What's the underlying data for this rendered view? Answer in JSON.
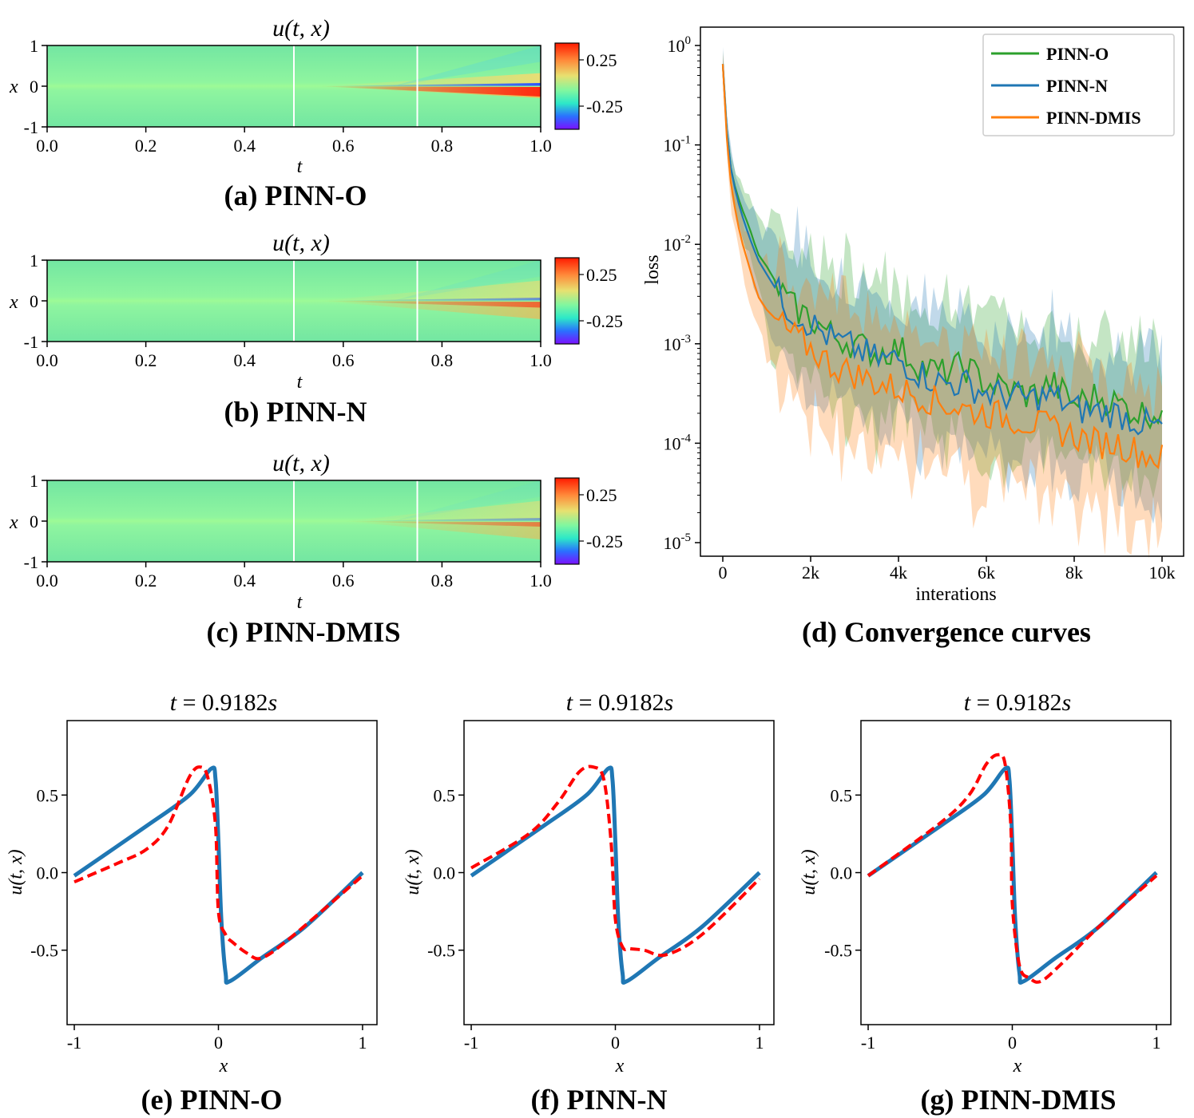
{
  "heatmap_title": "u(t, x)",
  "heatmap_xlabel": "t",
  "heatmap_ylabel": "x",
  "heatmap_xticks": [
    "0.0",
    "0.2",
    "0.4",
    "0.6",
    "0.8",
    "1.0"
  ],
  "heatmap_yticks": [
    "1",
    "0",
    "-1"
  ],
  "colorbar_ticks": [
    "0.25",
    "-0.25"
  ],
  "captions": {
    "a": "(a) PINN-O",
    "b": "(b) PINN-N",
    "c": "(c) PINN-DMIS",
    "d": "(d) Convergence curves",
    "e": "(e) PINN-O",
    "f": "(f) PINN-N",
    "g": "(g) PINN-DMIS"
  },
  "slice_title": {
    "prefix": "t",
    "equals": " = 0.9182",
    "unit": "s"
  },
  "slice_xlabel": "x",
  "slice_ylabel": "u(t, x)",
  "slice_xticks": [
    "-1",
    "0",
    "1"
  ],
  "slice_yticks": [
    "0.5",
    "0.0",
    "-0.5"
  ],
  "convergence_xlabel": "interations",
  "convergence_ylabel": "loss",
  "convergence_xticks": [
    "0",
    "2k",
    "4k",
    "6k",
    "8k",
    "10k"
  ],
  "colors": {
    "pinn_o": "#2ca02c",
    "pinn_n": "#1f77b4",
    "pinn_dmis": "#ff7f0e",
    "exact": "#1f77b4",
    "prediction": "#ff0000"
  },
  "chart_data": [
    {
      "id": "a",
      "type": "heatmap",
      "title": "u(t, x)",
      "xlabel": "t",
      "ylabel": "x",
      "xlim": [
        0,
        1
      ],
      "ylim": [
        -1,
        1
      ],
      "colorbar_ticks": [
        0.25,
        -0.25
      ],
      "vlines": [
        0.5,
        0.75
      ],
      "shock": {
        "start_t": 0.55,
        "intensity": 1.0,
        "spread": 0.32
      }
    },
    {
      "id": "b",
      "type": "heatmap",
      "title": "u(t, x)",
      "xlabel": "t",
      "ylabel": "x",
      "xlim": [
        0,
        1
      ],
      "ylim": [
        -1,
        1
      ],
      "colorbar_ticks": [
        0.25,
        -0.25
      ],
      "vlines": [
        0.5,
        0.75
      ],
      "shock": {
        "start_t": 0.55,
        "intensity": 0.55,
        "spread": 0.5
      }
    },
    {
      "id": "c",
      "type": "heatmap",
      "title": "u(t, x)",
      "xlabel": "t",
      "ylabel": "x",
      "xlim": [
        0,
        1
      ],
      "ylim": [
        -1,
        1
      ],
      "colorbar_ticks": [
        0.25,
        -0.25
      ],
      "vlines": [
        0.5,
        0.75
      ],
      "shock": {
        "start_t": 0.6,
        "intensity": 0.4,
        "spread": 0.5
      }
    },
    {
      "id": "d",
      "type": "line",
      "xlabel": "interations",
      "ylabel": "loss",
      "yscale": "log",
      "xlim": [
        0,
        10000
      ],
      "ylim": [
        1e-05,
        1
      ],
      "legend": "top-right",
      "series": [
        {
          "name": "PINN-O",
          "color": "#2ca02c",
          "x": [
            0,
            100,
            200,
            400,
            600,
            800,
            1000,
            1500,
            2000,
            2500,
            3000,
            3500,
            4000,
            4500,
            5000,
            5500,
            6000,
            6500,
            7000,
            7500,
            8000,
            8500,
            9000,
            9500,
            10000
          ],
          "y": [
            0.65,
            0.12,
            0.05,
            0.025,
            0.015,
            0.008,
            0.006,
            0.0025,
            0.0018,
            0.0012,
            0.001,
            0.0008,
            0.0009,
            0.0006,
            0.0005,
            0.0006,
            0.0004,
            0.00035,
            0.0003,
            0.0004,
            0.00025,
            0.0003,
            0.00025,
            0.0002,
            0.00021
          ]
        },
        {
          "name": "PINN-N",
          "color": "#1f77b4",
          "x": [
            0,
            100,
            200,
            400,
            600,
            800,
            1000,
            1500,
            2000,
            2500,
            3000,
            3500,
            4000,
            4500,
            5000,
            5500,
            6000,
            6500,
            7000,
            7500,
            8000,
            8500,
            9000,
            9500,
            10000
          ],
          "y": [
            0.65,
            0.12,
            0.05,
            0.022,
            0.012,
            0.007,
            0.005,
            0.0022,
            0.0016,
            0.0011,
            0.0009,
            0.0007,
            0.0007,
            0.0005,
            0.0004,
            0.0004,
            0.00032,
            0.0003,
            0.00028,
            0.0003,
            0.00022,
            0.00021,
            0.0002,
            0.00016,
            0.00014
          ]
        },
        {
          "name": "PINN-DMIS",
          "color": "#ff7f0e",
          "x": [
            0,
            100,
            200,
            400,
            600,
            800,
            1000,
            1500,
            2000,
            2500,
            3000,
            3500,
            4000,
            4500,
            5000,
            5500,
            6000,
            6500,
            7000,
            7500,
            8000,
            8500,
            9000,
            9500,
            10000
          ],
          "y": [
            0.65,
            0.1,
            0.035,
            0.012,
            0.006,
            0.003,
            0.0022,
            0.0013,
            0.0009,
            0.0006,
            0.0005,
            0.0004,
            0.00035,
            0.0003,
            0.00025,
            0.00022,
            0.0002,
            0.00018,
            0.00016,
            0.00014,
            0.00012,
            0.0001,
            0.0001,
            8e-05,
            7e-05
          ]
        }
      ]
    },
    {
      "id": "e",
      "type": "line",
      "title": "t = 0.9182s",
      "xlabel": "x",
      "ylabel": "u(t, x)",
      "xlim": [
        -1.05,
        1.1
      ],
      "ylim": [
        -0.98,
        0.98
      ],
      "series": [
        {
          "name": "",
          "style": "solid",
          "color": "#1f77b4",
          "x": [
            -1,
            -0.5,
            -0.2,
            -0.05,
            -0.02,
            0.0,
            0.02,
            0.05,
            0.08,
            0.3,
            0.6,
            1.0
          ],
          "y": [
            -0.02,
            0.3,
            0.5,
            0.67,
            0.6,
            0.2,
            -0.3,
            -0.65,
            -0.7,
            -0.55,
            -0.35,
            0.0
          ]
        },
        {
          "name": "",
          "style": "dashed",
          "color": "#ff0000",
          "x": [
            -1,
            -0.7,
            -0.5,
            -0.35,
            -0.2,
            -0.12,
            -0.07,
            -0.02,
            0.0,
            0.05,
            0.1,
            0.2,
            0.3,
            0.5,
            1.0
          ],
          "y": [
            -0.06,
            0.06,
            0.15,
            0.3,
            0.62,
            0.68,
            0.6,
            0.3,
            -0.25,
            -0.4,
            -0.45,
            -0.52,
            -0.55,
            -0.42,
            -0.02
          ]
        }
      ]
    },
    {
      "id": "f",
      "type": "line",
      "title": "t = 0.9182s",
      "xlabel": "x",
      "ylabel": "u(t, x)",
      "xlim": [
        -1.05,
        1.1
      ],
      "ylim": [
        -0.98,
        0.98
      ],
      "series": [
        {
          "name": "",
          "style": "solid",
          "color": "#1f77b4",
          "x": [
            -1,
            -0.5,
            -0.2,
            -0.05,
            -0.02,
            0.0,
            0.02,
            0.05,
            0.08,
            0.3,
            0.6,
            1.0
          ],
          "y": [
            -0.02,
            0.3,
            0.5,
            0.67,
            0.6,
            0.2,
            -0.3,
            -0.65,
            -0.7,
            -0.55,
            -0.35,
            0.0
          ]
        },
        {
          "name": "",
          "style": "dashed",
          "color": "#ff0000",
          "x": [
            -1,
            -0.6,
            -0.4,
            -0.25,
            -0.15,
            -0.08,
            -0.03,
            0.0,
            0.05,
            0.1,
            0.2,
            0.35,
            0.6,
            1.0
          ],
          "y": [
            0.03,
            0.25,
            0.45,
            0.65,
            0.68,
            0.6,
            0.2,
            -0.3,
            -0.48,
            -0.49,
            -0.5,
            -0.53,
            -0.4,
            -0.04
          ]
        }
      ]
    },
    {
      "id": "g",
      "type": "line",
      "title": "t = 0.9182s",
      "xlabel": "x",
      "ylabel": "u(t, x)",
      "xlim": [
        -1.05,
        1.1
      ],
      "ylim": [
        -0.98,
        0.98
      ],
      "series": [
        {
          "name": "",
          "style": "solid",
          "color": "#1f77b4",
          "x": [
            -1,
            -0.5,
            -0.2,
            -0.05,
            -0.02,
            0.0,
            0.02,
            0.05,
            0.08,
            0.3,
            0.6,
            1.0
          ],
          "y": [
            -0.02,
            0.3,
            0.5,
            0.67,
            0.6,
            0.2,
            -0.3,
            -0.65,
            -0.7,
            -0.55,
            -0.35,
            0.0
          ]
        },
        {
          "name": "",
          "style": "dashed",
          "color": "#ff0000",
          "x": [
            -1,
            -0.5,
            -0.3,
            -0.18,
            -0.1,
            -0.05,
            -0.01,
            0.0,
            0.05,
            0.12,
            0.2,
            0.35,
            0.6,
            1.0
          ],
          "y": [
            -0.02,
            0.32,
            0.5,
            0.7,
            0.76,
            0.7,
            0.3,
            -0.2,
            -0.6,
            -0.68,
            -0.7,
            -0.58,
            -0.35,
            -0.02
          ]
        }
      ]
    }
  ]
}
